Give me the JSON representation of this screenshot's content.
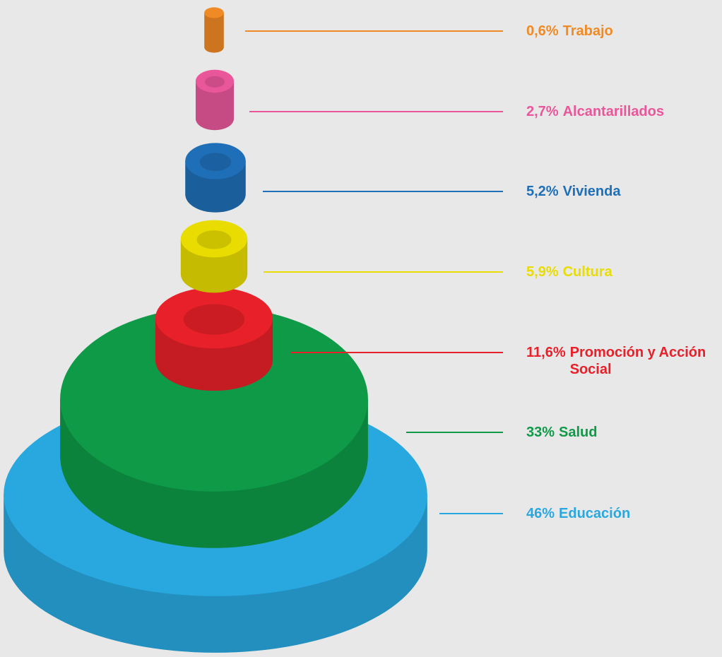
{
  "chart_data": {
    "type": "cylinders",
    "categories": [
      "Trabajo",
      "Alcantarillados",
      "Vivienda",
      "Cultura",
      "Promoción y Acción Social",
      "Salud",
      "Educación"
    ],
    "values": [
      0.6,
      2.7,
      5.2,
      5.9,
      11.6,
      33,
      46
    ],
    "value_labels": [
      "0,6%",
      "2,7%",
      "5,2%",
      "5,9%",
      "11,6%",
      "33%",
      "46%"
    ],
    "colors": [
      "#f08a24",
      "#e9579a",
      "#1f6fb8",
      "#e8dc00",
      "#e8202a",
      "#0f9a48",
      "#29a8e0"
    ]
  }
}
